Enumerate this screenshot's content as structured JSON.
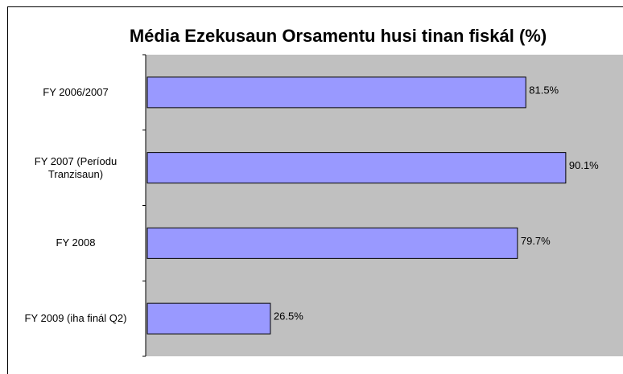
{
  "chart_data": {
    "type": "bar",
    "orientation": "horizontal",
    "title": "Média Ezekusaun Orsamentu husi tinan fiskál (%)",
    "categories": [
      "FY 2006/2007",
      "FY 2007 (Períodu Tranzisaun)",
      "FY 2008",
      "FY 2009 (iha finál Q2)"
    ],
    "values": [
      81.5,
      90.1,
      79.7,
      26.5
    ],
    "value_labels": [
      "81.5%",
      "90.1%",
      "79.7%",
      "26.5%"
    ],
    "color": "#9999ff",
    "xlim": [
      0,
      100
    ]
  }
}
